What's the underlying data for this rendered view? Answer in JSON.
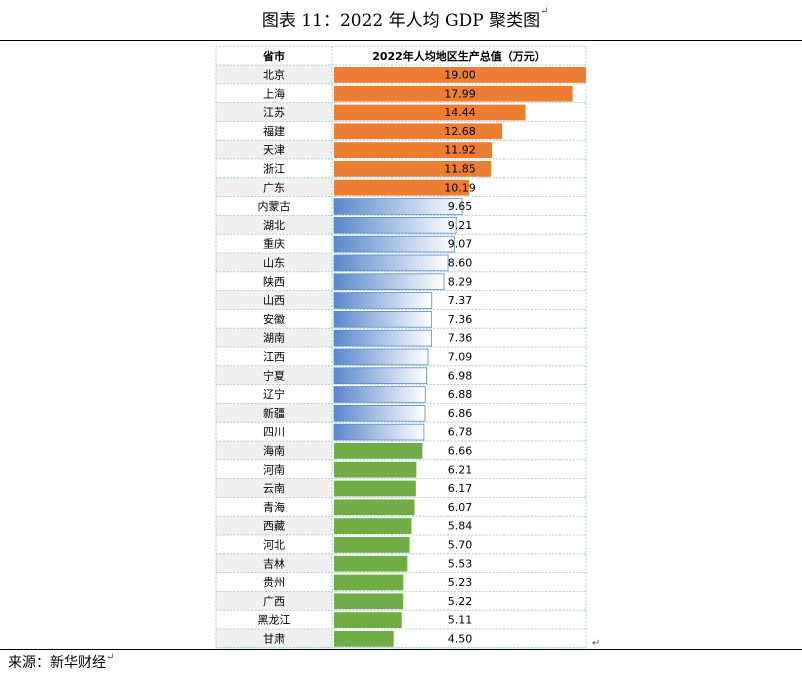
{
  "title": "图表 11：2022 年人均 GDP 聚类图",
  "title_mark": "↵",
  "source": "来源：新华财经",
  "source_mark": "↵",
  "table_mark": "↵",
  "colors": {
    "top": "#ED7D31",
    "mid_dark": "#5B87CC",
    "mid_light": "#FFFFFF",
    "low": "#70AD47",
    "row_alt": "#F0F0F0",
    "grid": "#8FC7D6"
  },
  "chart_data": {
    "type": "bar",
    "orientation": "horizontal",
    "column_headers": [
      "省市",
      "2022年人均地区生产总值（万元）"
    ],
    "xlim": [
      0,
      19.0
    ],
    "rows": [
      {
        "name": "北京",
        "value": 19.0,
        "label": "19.00",
        "group": "top"
      },
      {
        "name": "上海",
        "value": 17.99,
        "label": "17.99",
        "group": "top"
      },
      {
        "name": "江苏",
        "value": 14.44,
        "label": "14.44",
        "group": "top"
      },
      {
        "name": "福建",
        "value": 12.68,
        "label": "12.68",
        "group": "top"
      },
      {
        "name": "天津",
        "value": 11.92,
        "label": "11.92",
        "group": "top"
      },
      {
        "name": "浙江",
        "value": 11.85,
        "label": "11.85",
        "group": "top"
      },
      {
        "name": "广东",
        "value": 10.19,
        "label": "10.19",
        "group": "top"
      },
      {
        "name": "内蒙古",
        "value": 9.65,
        "label": "9.65",
        "group": "mid"
      },
      {
        "name": "湖北",
        "value": 9.21,
        "label": "9.21",
        "group": "mid"
      },
      {
        "name": "重庆",
        "value": 9.07,
        "label": "9.07",
        "group": "mid"
      },
      {
        "name": "山东",
        "value": 8.6,
        "label": "8.60",
        "group": "mid"
      },
      {
        "name": "陕西",
        "value": 8.29,
        "label": "8.29",
        "group": "mid"
      },
      {
        "name": "山西",
        "value": 7.37,
        "label": "7.37",
        "group": "mid"
      },
      {
        "name": "安徽",
        "value": 7.36,
        "label": "7.36",
        "group": "mid"
      },
      {
        "name": "湖南",
        "value": 7.36,
        "label": "7.36",
        "group": "mid"
      },
      {
        "name": "江西",
        "value": 7.09,
        "label": "7.09",
        "group": "mid"
      },
      {
        "name": "宁夏",
        "value": 6.98,
        "label": "6.98",
        "group": "mid"
      },
      {
        "name": "辽宁",
        "value": 6.88,
        "label": "6.88",
        "group": "mid"
      },
      {
        "name": "新疆",
        "value": 6.86,
        "label": "6.86",
        "group": "mid"
      },
      {
        "name": "四川",
        "value": 6.78,
        "label": "6.78",
        "group": "mid"
      },
      {
        "name": "海南",
        "value": 6.66,
        "label": "6.66",
        "group": "low"
      },
      {
        "name": "河南",
        "value": 6.21,
        "label": "6.21",
        "group": "low"
      },
      {
        "name": "云南",
        "value": 6.17,
        "label": "6.17",
        "group": "low"
      },
      {
        "name": "青海",
        "value": 6.07,
        "label": "6.07",
        "group": "low"
      },
      {
        "name": "西藏",
        "value": 5.84,
        "label": "5.84",
        "group": "low"
      },
      {
        "name": "河北",
        "value": 5.7,
        "label": "5.70",
        "group": "low"
      },
      {
        "name": "吉林",
        "value": 5.53,
        "label": "5.53",
        "group": "low"
      },
      {
        "name": "贵州",
        "value": 5.23,
        "label": "5.23",
        "group": "low"
      },
      {
        "name": "广西",
        "value": 5.22,
        "label": "5.22",
        "group": "low"
      },
      {
        "name": "黑龙江",
        "value": 5.11,
        "label": "5.11",
        "group": "low"
      },
      {
        "name": "甘肃",
        "value": 4.5,
        "label": "4.50",
        "group": "low"
      }
    ]
  }
}
